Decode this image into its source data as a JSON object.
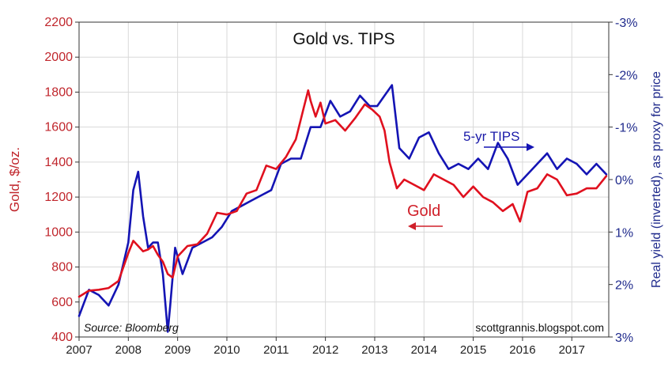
{
  "chart_data": {
    "type": "line",
    "title": "Gold vs. TIPS",
    "ylabel_left": "Gold, $/oz.",
    "ylabel_right": "Real yield (inverted), as proxy for price",
    "x_ticks": [
      "2007",
      "2008",
      "2009",
      "2010",
      "2011",
      "2012",
      "2013",
      "2014",
      "2015",
      "2016",
      "2017"
    ],
    "xlim": [
      2007.0,
      2017.75
    ],
    "y_left_ticks": [
      "400",
      "600",
      "800",
      "1000",
      "1200",
      "1400",
      "1600",
      "1800",
      "2000",
      "2200"
    ],
    "ylim_left": [
      400,
      2200
    ],
    "y_right_ticks": [
      "-3%",
      "-2%",
      "-1%",
      "0%",
      "1%",
      "2%",
      "3%"
    ],
    "ylim_right": [
      -3,
      3
    ],
    "y_right_inverted": true,
    "series": [
      {
        "name": "Gold",
        "axis": "left",
        "color": "#e0101e",
        "x": [
          2007.0,
          2007.2,
          2007.4,
          2007.6,
          2007.8,
          2008.0,
          2008.1,
          2008.2,
          2008.3,
          2008.4,
          2008.5,
          2008.6,
          2008.7,
          2008.8,
          2008.9,
          2009.0,
          2009.2,
          2009.4,
          2009.6,
          2009.8,
          2010.0,
          2010.2,
          2010.4,
          2010.6,
          2010.8,
          2011.0,
          2011.2,
          2011.4,
          2011.55,
          2011.65,
          2011.7,
          2011.8,
          2011.9,
          2012.0,
          2012.2,
          2012.4,
          2012.6,
          2012.8,
          2012.95,
          2013.1,
          2013.2,
          2013.3,
          2013.45,
          2013.6,
          2013.8,
          2014.0,
          2014.2,
          2014.4,
          2014.6,
          2014.8,
          2015.0,
          2015.2,
          2015.4,
          2015.6,
          2015.8,
          2015.95,
          2016.1,
          2016.3,
          2016.5,
          2016.7,
          2016.9,
          2017.1,
          2017.3,
          2017.5,
          2017.7
        ],
        "values": [
          630,
          665,
          670,
          680,
          720,
          880,
          950,
          920,
          890,
          900,
          920,
          870,
          830,
          760,
          740,
          860,
          920,
          930,
          990,
          1110,
          1100,
          1120,
          1220,
          1240,
          1380,
          1360,
          1430,
          1530,
          1700,
          1810,
          1750,
          1660,
          1740,
          1620,
          1640,
          1580,
          1650,
          1730,
          1700,
          1660,
          1580,
          1400,
          1250,
          1300,
          1270,
          1240,
          1330,
          1300,
          1270,
          1200,
          1260,
          1200,
          1170,
          1120,
          1160,
          1060,
          1230,
          1250,
          1330,
          1300,
          1210,
          1220,
          1250,
          1250,
          1320
        ]
      },
      {
        "name": "5-yr TIPS",
        "axis": "right",
        "color": "#1414b4",
        "x": [
          2007.0,
          2007.2,
          2007.4,
          2007.6,
          2007.8,
          2008.0,
          2008.1,
          2008.2,
          2008.3,
          2008.4,
          2008.5,
          2008.6,
          2008.7,
          2008.8,
          2008.85,
          2008.95,
          2009.1,
          2009.3,
          2009.5,
          2009.7,
          2009.9,
          2010.1,
          2010.3,
          2010.5,
          2010.7,
          2010.9,
          2011.1,
          2011.3,
          2011.5,
          2011.7,
          2011.9,
          2012.1,
          2012.3,
          2012.5,
          2012.7,
          2012.9,
          2013.05,
          2013.2,
          2013.35,
          2013.5,
          2013.7,
          2013.9,
          2014.1,
          2014.3,
          2014.5,
          2014.7,
          2014.9,
          2015.1,
          2015.3,
          2015.5,
          2015.7,
          2015.9,
          2016.1,
          2016.3,
          2016.5,
          2016.7,
          2016.9,
          2017.1,
          2017.3,
          2017.5,
          2017.7
        ],
        "values": [
          2.6,
          2.1,
          2.2,
          2.4,
          2.0,
          1.2,
          0.2,
          -0.15,
          0.7,
          1.3,
          1.2,
          1.2,
          1.8,
          2.9,
          2.4,
          1.3,
          1.8,
          1.3,
          1.2,
          1.1,
          0.9,
          0.6,
          0.5,
          0.4,
          0.3,
          0.2,
          -0.3,
          -0.4,
          -0.4,
          -1.0,
          -1.0,
          -1.5,
          -1.2,
          -1.3,
          -1.6,
          -1.4,
          -1.4,
          -1.6,
          -1.8,
          -0.6,
          -0.4,
          -0.8,
          -0.9,
          -0.5,
          -0.2,
          -0.3,
          -0.2,
          -0.4,
          -0.2,
          -0.7,
          -0.4,
          0.1,
          -0.1,
          -0.3,
          -0.5,
          -0.2,
          -0.4,
          -0.3,
          -0.1,
          -0.3,
          -0.1
        ]
      }
    ],
    "annotations": [
      {
        "text": "5-yr TIPS",
        "series": "5-yr TIPS"
      },
      {
        "text": "Gold",
        "series": "Gold"
      },
      {
        "text": "Source: Bloomberg"
      },
      {
        "text": "scottgrannis.blogspot.com"
      }
    ],
    "grid": true,
    "legend": "inline-labels"
  }
}
